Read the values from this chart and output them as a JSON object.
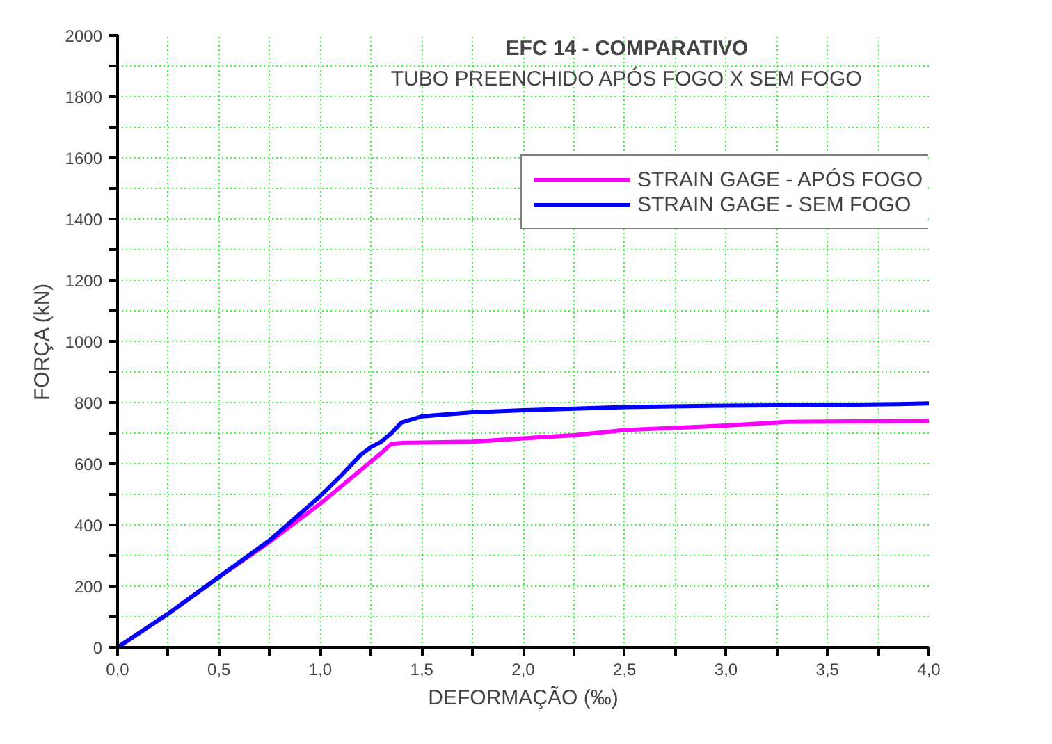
{
  "chart_data": {
    "type": "line",
    "title": "EFC 14 - COMPARATIVO",
    "subtitle": "TUBO PREENCHIDO APÓS FOGO X SEM FOGO",
    "xlabel": "DEFORMAÇÃO (‰)",
    "ylabel": "FORÇA (kN)",
    "xlim": [
      0,
      4
    ],
    "ylim": [
      0,
      2000
    ],
    "xticks": [
      {
        "value": 0,
        "label": "0,0"
      },
      {
        "value": 0.25,
        "label": null
      },
      {
        "value": 0.5,
        "label": "0,5"
      },
      {
        "value": 0.75,
        "label": null
      },
      {
        "value": 1,
        "label": "1,0"
      },
      {
        "value": 1.25,
        "label": null
      },
      {
        "value": 1.5,
        "label": "1,5"
      },
      {
        "value": 1.75,
        "label": null
      },
      {
        "value": 2,
        "label": "2,0"
      },
      {
        "value": 2.25,
        "label": null
      },
      {
        "value": 2.5,
        "label": "2,5"
      },
      {
        "value": 2.75,
        "label": null
      },
      {
        "value": 3,
        "label": "3,0"
      },
      {
        "value": 3.25,
        "label": null
      },
      {
        "value": 3.5,
        "label": "3,5"
      },
      {
        "value": 3.75,
        "label": null
      },
      {
        "value": 4,
        "label": "4,0"
      }
    ],
    "yticks": [
      0,
      {
        "value": 100,
        "label": null
      },
      200,
      {
        "value": 300,
        "label": null
      },
      400,
      {
        "value": 500,
        "label": null
      },
      600,
      {
        "value": 700,
        "label": null
      },
      800,
      {
        "value": 900,
        "label": null
      },
      1000,
      {
        "value": 1100,
        "label": null
      },
      1200,
      {
        "value": 1300,
        "label": null
      },
      1400,
      {
        "value": 1500,
        "label": null
      },
      1600,
      {
        "value": 1700,
        "label": null
      },
      1800,
      {
        "value": 1900,
        "label": null
      },
      2000
    ],
    "grid": true,
    "legend": "top right",
    "line_style": "solid",
    "marker": "none",
    "series": [
      {
        "name": "STRAIN GAGE - APÓS FOGO",
        "color": "#ff00ff",
        "x": [
          0,
          0.25,
          0.5,
          0.75,
          1.0,
          1.2,
          1.3,
          1.35,
          1.4,
          1.75,
          2.0,
          2.25,
          2.5,
          3.0,
          3.3,
          3.5,
          4.0
        ],
        "values": [
          0,
          110,
          230,
          345,
          470,
          580,
          635,
          665,
          668,
          672,
          683,
          693,
          710,
          725,
          737,
          738,
          740
        ]
      },
      {
        "name": "STRAIN GAGE - SEM FOGO",
        "color": "#0000ff",
        "x": [
          0,
          0.25,
          0.5,
          0.75,
          1.0,
          1.1,
          1.2,
          1.25,
          1.3,
          1.35,
          1.4,
          1.5,
          1.75,
          2.0,
          2.5,
          3.0,
          3.5,
          3.85,
          4.0
        ],
        "values": [
          0,
          110,
          230,
          350,
          495,
          560,
          630,
          655,
          672,
          700,
          735,
          755,
          768,
          775,
          785,
          790,
          792,
          795,
          797
        ]
      }
    ]
  }
}
